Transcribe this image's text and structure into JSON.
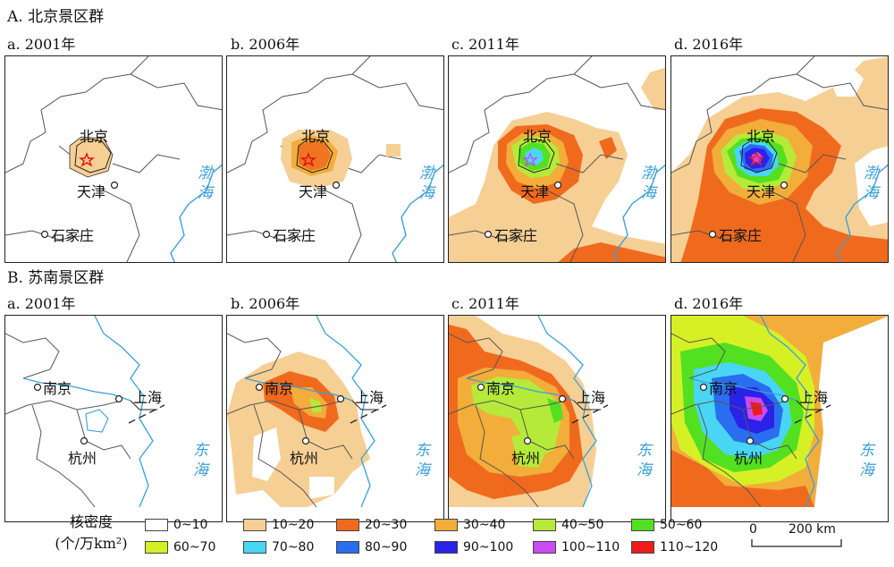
{
  "sections": {
    "a": "A. 北京景区群",
    "b": "B. 苏南景区群"
  },
  "panels": {
    "p2001": "a. 2001年",
    "p2006": "b. 2006年",
    "p2011": "c. 2011年",
    "p2016": "d. 2016年"
  },
  "cities": {
    "beijing": "北京",
    "tianjin": "天津",
    "shijiazhuang": "石家庄",
    "nanjing": "南京",
    "shanghai": "上海",
    "hangzhou": "杭州"
  },
  "seas": {
    "bohai": "渤海",
    "donghai": "东海"
  },
  "legend": {
    "title_line1": "核密度",
    "title_line2": "(个/万km²)",
    "items": [
      {
        "label": "0~10",
        "color": "#ffffff"
      },
      {
        "label": "10~20",
        "color": "#f6cf94"
      },
      {
        "label": "20~30",
        "color": "#f06a1e"
      },
      {
        "label": "30~40",
        "color": "#f2ad3a"
      },
      {
        "label": "40~50",
        "color": "#b5ea3a"
      },
      {
        "label": "50~60",
        "color": "#52e020"
      },
      {
        "label": "60~70",
        "color": "#d6f026"
      },
      {
        "label": "70~80",
        "color": "#49d6f4"
      },
      {
        "label": "80~90",
        "color": "#2a6ef0"
      },
      {
        "label": "90~100",
        "color": "#2b22e8"
      },
      {
        "label": "100~110",
        "color": "#c94cf2"
      },
      {
        "label": "110~120",
        "color": "#f01a1a"
      }
    ]
  },
  "scale": {
    "zero": "0",
    "value": "200 km"
  }
}
